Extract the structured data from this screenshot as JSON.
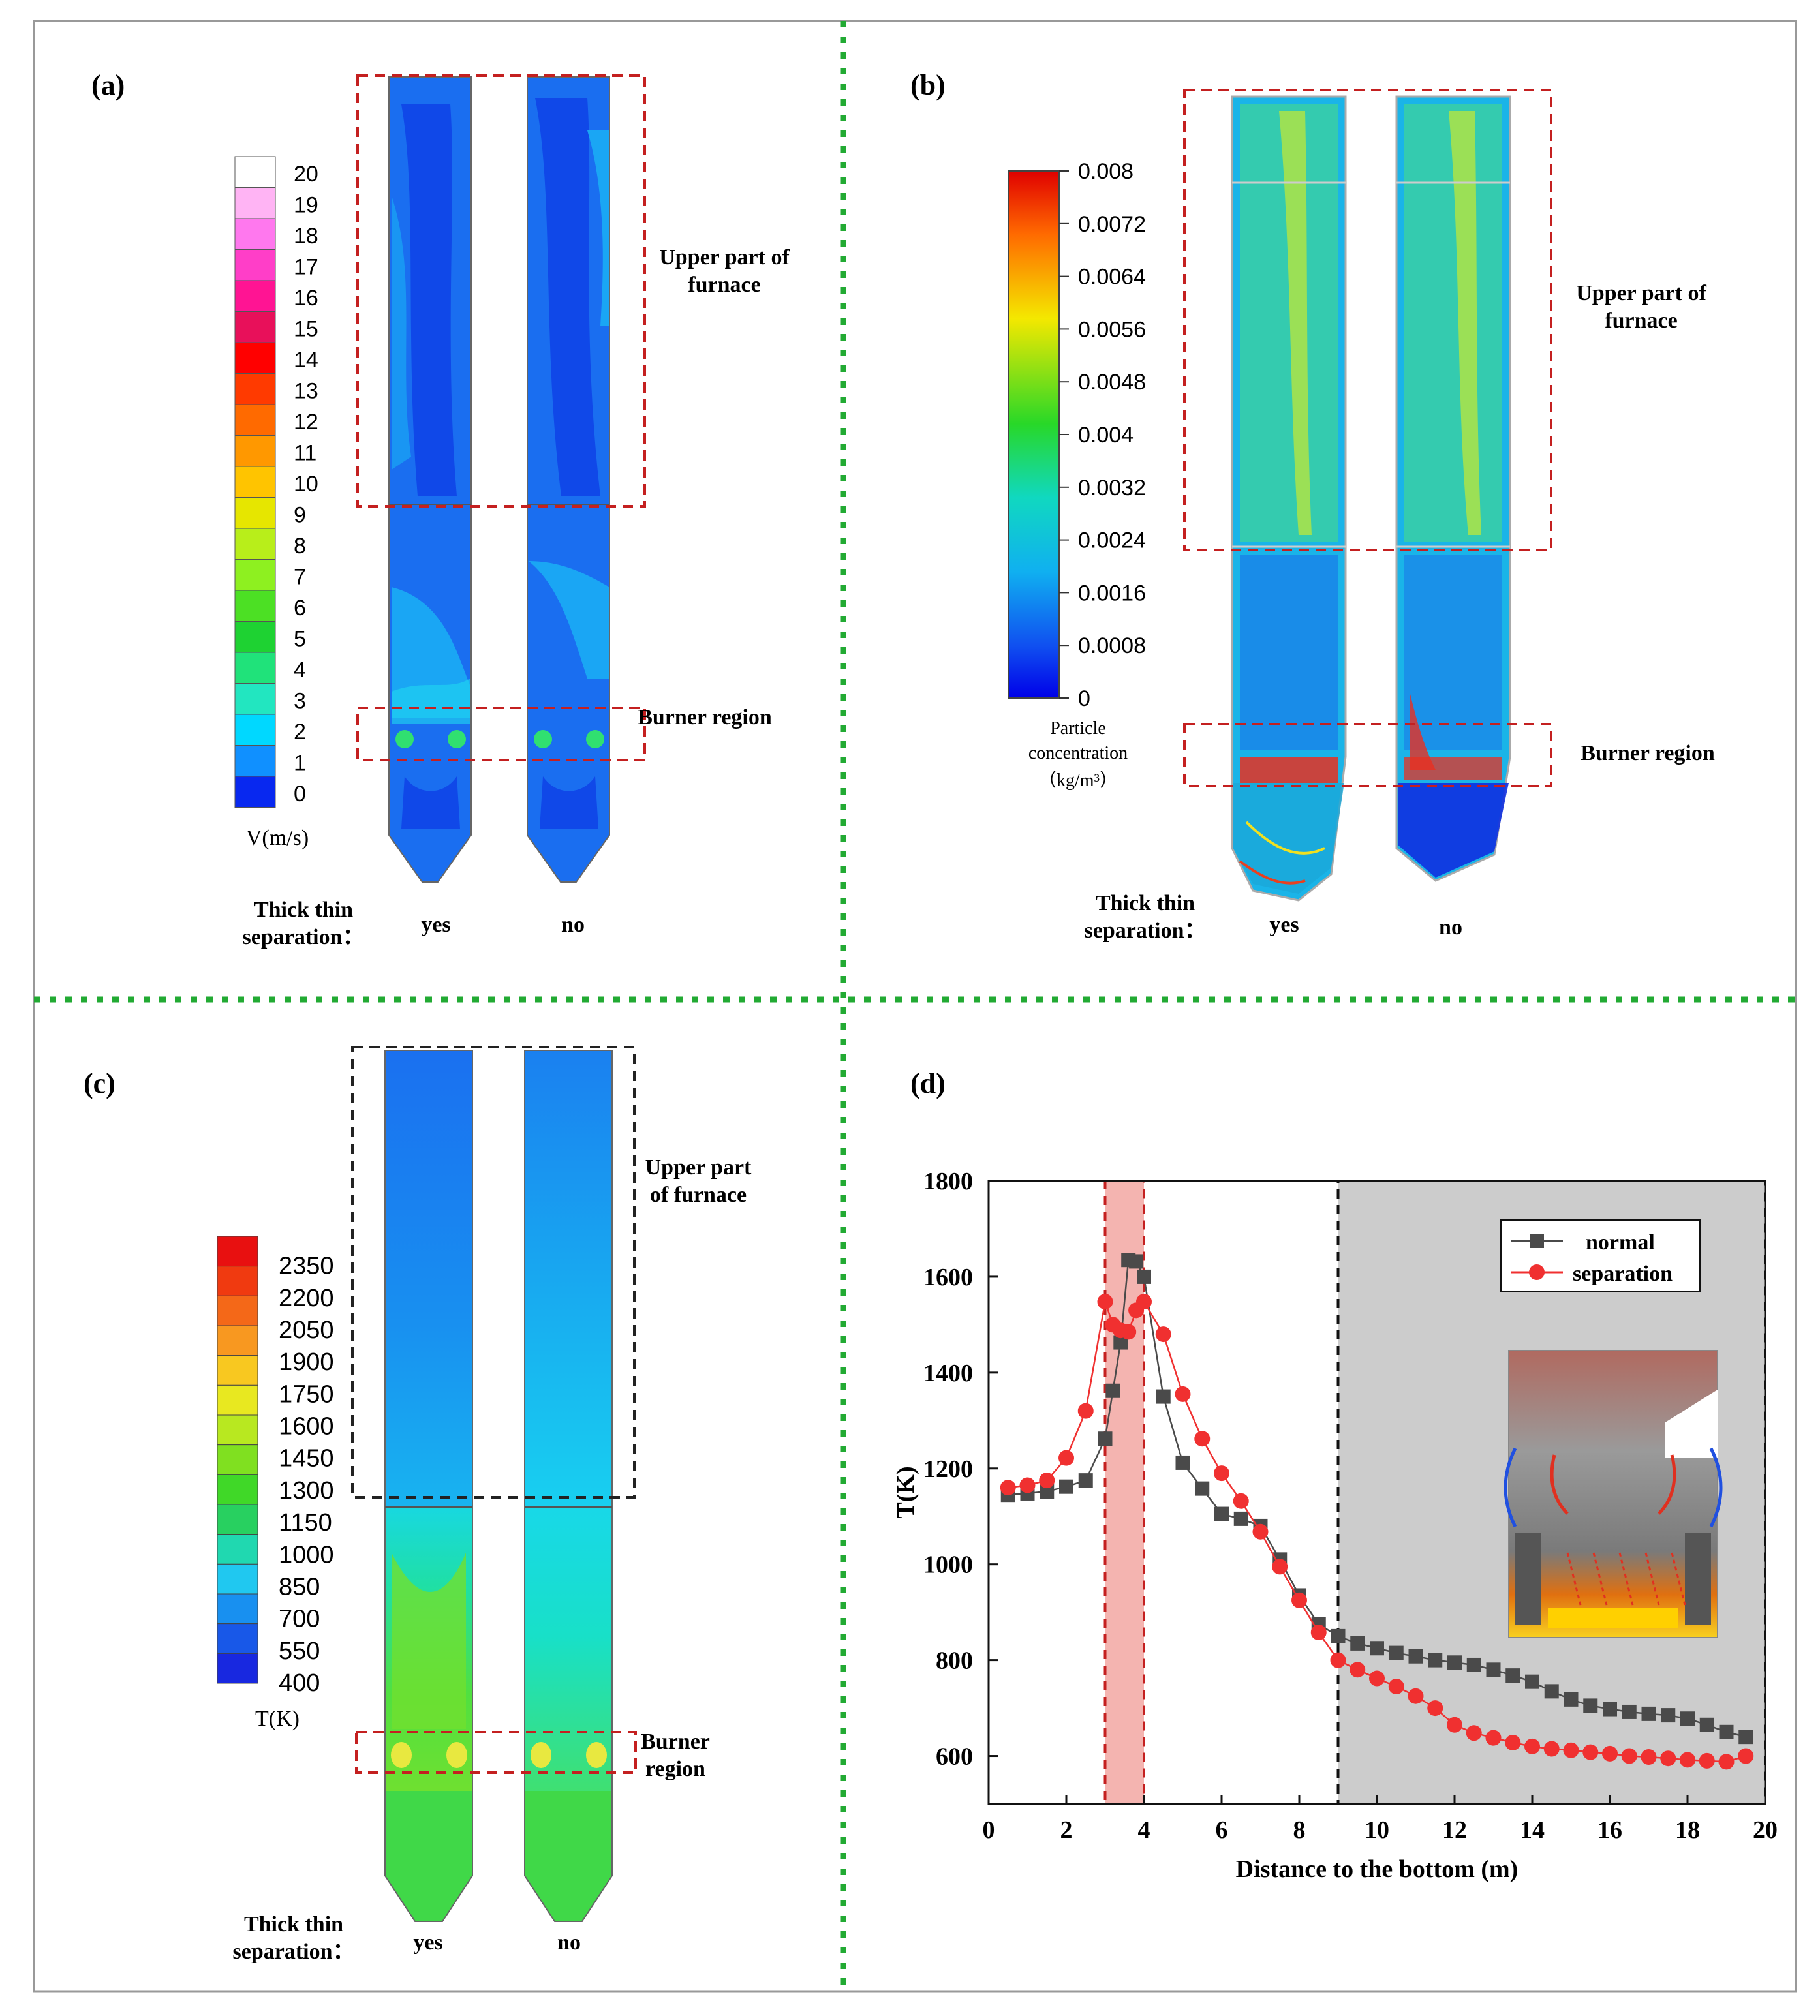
{
  "panels": {
    "a": {
      "label": "(a)",
      "colorbar": {
        "ticks": [
          "20",
          "19",
          "18",
          "17",
          "16",
          "15",
          "14",
          "13",
          "12",
          "11",
          "10",
          "9",
          "8",
          "7",
          "6",
          "5",
          "4",
          "3",
          "2",
          "1",
          "0"
        ],
        "colors": [
          "#ffffff",
          "#ffb4f4",
          "#ff78ee",
          "#ff3ec8",
          "#ff1493",
          "#e8105a",
          "#ff0000",
          "#ff3a00",
          "#ff6a00",
          "#ff9800",
          "#ffc400",
          "#e6e600",
          "#b8ee1a",
          "#8ef020",
          "#4ce024",
          "#1ed232",
          "#20e27a",
          "#22e6c0",
          "#00d8ff",
          "#1090ff",
          "#0828f0"
        ],
        "unit": "V(m/s)"
      },
      "callouts": {
        "upper": "Upper part of furnace",
        "burner": "Burner region"
      },
      "footer": {
        "label": "Thick thin separation：",
        "yes": "yes",
        "no": "no"
      },
      "colors": {
        "base": "#1a6ef0",
        "dark": "#1048e8",
        "light": "#1aa6f4",
        "green": "#30e070"
      }
    },
    "b": {
      "label": "(b)",
      "colorbar": {
        "ticks": [
          "0.008",
          "0.0072",
          "0.0064",
          "0.0056",
          "0.0048",
          "0.004",
          "0.0032",
          "0.0024",
          "0.0016",
          "0.0008",
          "0"
        ],
        "title": "Particle concentration",
        "unit": "（kg/m³）"
      },
      "callouts": {
        "upper": "Upper part of furnace",
        "burner": "Burner region"
      },
      "footer": {
        "label": "Thick thin separation：",
        "yes": "yes",
        "no": "no"
      }
    },
    "c": {
      "label": "(c)",
      "colorbar": {
        "ticks": [
          "2350",
          "2200",
          "2050",
          "1900",
          "1750",
          "1600",
          "1450",
          "1300",
          "1150",
          "1000",
          "850",
          "700",
          "550",
          "400"
        ],
        "colors": [
          "#e81010",
          "#f03a10",
          "#f46818",
          "#f89820",
          "#f8c820",
          "#e8e820",
          "#b8e820",
          "#80e020",
          "#40d828",
          "#28d060",
          "#20d8b0",
          "#20c8f0",
          "#1890f0",
          "#1858e8",
          "#1828e0"
        ],
        "unit": "T(K)"
      },
      "callouts": {
        "upper": "Upper part of furnace",
        "burner": "Burner region"
      },
      "footer": {
        "label": "Thick thin separation：",
        "yes": "yes",
        "no": "no"
      }
    },
    "d": {
      "label": "(d)",
      "legend": {
        "normal": "normal",
        "separation": "separation"
      },
      "colors": {
        "normal": "#4a4a4a",
        "separation": "#f03030",
        "burner_band": "#f4b4b0",
        "upper_shade": "#cccccc"
      }
    }
  },
  "chart_data": {
    "type": "line",
    "xlabel": "Distance to the bottom (m)",
    "ylabel": "T(K)",
    "xlim": [
      0,
      20
    ],
    "ylim": [
      500,
      1800
    ],
    "xticks": [
      "0",
      "2",
      "4",
      "6",
      "8",
      "10",
      "12",
      "14",
      "16",
      "18",
      "20"
    ],
    "yticks": [
      "600",
      "800",
      "1000",
      "1200",
      "1400",
      "1600",
      "1800"
    ],
    "highlight_burner_x": [
      3.0,
      4.0
    ],
    "highlight_upper_x": [
      9.0,
      20.0
    ],
    "series": [
      {
        "name": "normal",
        "marker": "square",
        "x": [
          0.5,
          1.0,
          1.5,
          2.0,
          2.5,
          3.0,
          3.2,
          3.4,
          3.6,
          3.8,
          4.0,
          4.5,
          5.0,
          5.5,
          6.0,
          6.5,
          7.0,
          7.5,
          8.0,
          8.5,
          9.0,
          9.5,
          10.0,
          10.5,
          11.0,
          11.5,
          12.0,
          12.5,
          13.0,
          13.5,
          14.0,
          14.5,
          15.0,
          15.5,
          16.0,
          16.5,
          17.0,
          17.5,
          18.0,
          18.5,
          19.0,
          19.5
        ],
        "values": [
          1145,
          1148,
          1152,
          1162,
          1175,
          1262,
          1362,
          1463,
          1635,
          1632,
          1600,
          1350,
          1212,
          1158,
          1105,
          1095,
          1080,
          1010,
          935,
          875,
          850,
          835,
          825,
          815,
          808,
          800,
          795,
          790,
          780,
          768,
          755,
          735,
          718,
          705,
          698,
          692,
          688,
          685,
          678,
          665,
          650,
          640
        ]
      },
      {
        "name": "separation",
        "marker": "circle",
        "x": [
          0.5,
          1.0,
          1.5,
          2.0,
          2.5,
          3.0,
          3.2,
          3.4,
          3.6,
          3.8,
          4.0,
          4.5,
          5.0,
          5.5,
          6.0,
          6.5,
          7.0,
          7.5,
          8.0,
          8.5,
          9.0,
          9.5,
          10.0,
          10.5,
          11.0,
          11.5,
          12.0,
          12.5,
          13.0,
          13.5,
          14.0,
          14.5,
          15.0,
          15.5,
          16.0,
          16.5,
          17.0,
          17.5,
          18.0,
          18.5,
          19.0,
          19.5
        ],
        "values": [
          1160,
          1165,
          1175,
          1222,
          1320,
          1548,
          1500,
          1488,
          1485,
          1530,
          1548,
          1480,
          1355,
          1262,
          1190,
          1132,
          1068,
          995,
          925,
          858,
          800,
          780,
          762,
          745,
          725,
          700,
          665,
          648,
          638,
          628,
          620,
          615,
          612,
          608,
          605,
          600,
          598,
          595,
          592,
          590,
          588,
          600
        ]
      }
    ]
  }
}
